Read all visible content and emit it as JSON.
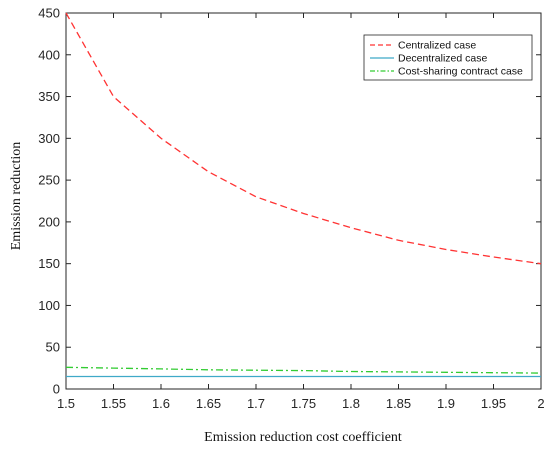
{
  "chart_data": {
    "type": "line",
    "xlabel": "Emission reduction cost coefficient",
    "ylabel": "Emission reduction",
    "xlim": [
      1.5,
      2
    ],
    "ylim": [
      0,
      450
    ],
    "xticks": [
      "1.5",
      "1.55",
      "1.6",
      "1.65",
      "1.7",
      "1.75",
      "1.8",
      "1.85",
      "1.9",
      "1.95",
      "2"
    ],
    "yticks": [
      "0",
      "50",
      "100",
      "150",
      "200",
      "250",
      "300",
      "350",
      "400",
      "450"
    ],
    "grid": false,
    "legend_position": "top-right",
    "x": [
      1.5,
      1.55,
      1.6,
      1.65,
      1.7,
      1.75,
      1.8,
      1.85,
      1.9,
      1.95,
      2.0
    ],
    "series": [
      {
        "name": "Centralized case",
        "color": "#ff3333",
        "line_style": "dashed",
        "values": [
          450,
          350,
          300,
          260,
          230,
          210,
          193,
          178,
          167,
          158,
          150
        ]
      },
      {
        "name": "Decentralized case",
        "color": "#3fa9c8",
        "line_style": "solid",
        "values": [
          15,
          15,
          15,
          15,
          15,
          15,
          15,
          15,
          15,
          15,
          15
        ]
      },
      {
        "name": "Cost-sharing contract case",
        "color": "#33cc33",
        "line_style": "dashdot",
        "values": [
          26,
          25,
          24,
          23,
          22.5,
          22,
          21,
          20.5,
          20,
          19.5,
          19
        ]
      }
    ]
  }
}
